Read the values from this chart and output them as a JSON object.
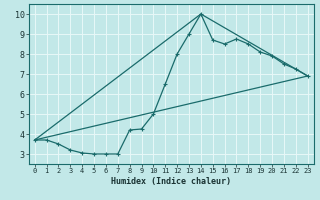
{
  "xlabel": "Humidex (Indice chaleur)",
  "ylabel": "",
  "bg_color": "#c2e8e8",
  "line_color": "#1a6b6b",
  "grid_color": "#e8f8f8",
  "xlim": [
    -0.5,
    23.5
  ],
  "ylim": [
    2.5,
    10.5
  ],
  "xticks": [
    0,
    1,
    2,
    3,
    4,
    5,
    6,
    7,
    8,
    9,
    10,
    11,
    12,
    13,
    14,
    15,
    16,
    17,
    18,
    19,
    20,
    21,
    22,
    23
  ],
  "yticks": [
    3,
    4,
    5,
    6,
    7,
    8,
    9,
    10
  ],
  "line1_x": [
    0,
    1,
    2,
    3,
    4,
    5,
    6,
    7,
    8,
    9,
    10,
    11,
    12,
    13,
    14,
    15,
    16,
    17,
    18,
    19,
    20,
    21,
    22,
    23
  ],
  "line1_y": [
    3.7,
    3.7,
    3.5,
    3.2,
    3.05,
    3.0,
    3.0,
    3.0,
    4.2,
    4.25,
    5.0,
    6.5,
    8.0,
    9.0,
    10.0,
    8.7,
    8.5,
    8.75,
    8.5,
    8.1,
    7.9,
    7.5,
    7.25,
    6.9
  ],
  "line2_x": [
    0,
    14,
    23
  ],
  "line2_y": [
    3.7,
    10.0,
    6.9
  ],
  "line3_x": [
    0,
    23
  ],
  "line3_y": [
    3.7,
    6.9
  ]
}
